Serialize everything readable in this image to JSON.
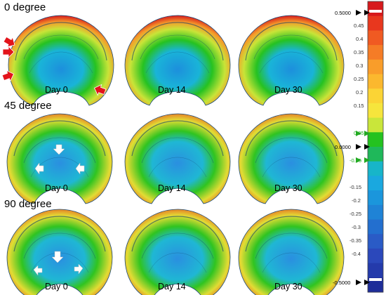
{
  "rows": [
    {
      "title": "0 degree",
      "panels": [
        "Day 0",
        "Day 14",
        "Day 30"
      ],
      "arrows": "outer"
    },
    {
      "title": "45 degree",
      "panels": [
        "Day 0",
        "Day 14",
        "Day 30"
      ],
      "arrows": "inner"
    },
    {
      "title": "90 degree",
      "panels": [
        "Day 0",
        "Day 14",
        "Day 30"
      ],
      "arrows": "inner"
    }
  ],
  "colorbar": {
    "top_label": "0.5000",
    "bottom_label": "-0.5000",
    "zero_label": "0.0000",
    "ticks_pos": [
      "0.45",
      "0.4",
      "0.35",
      "0.3",
      "0.25",
      "0.2",
      "0.15",
      "0.05"
    ],
    "ticks_neg": [
      "-0.05",
      "-0.15",
      "-0.2",
      "-0.25",
      "-0.3",
      "-0.35",
      "-0.4"
    ],
    "colors_top_to_bottom": [
      "#d7191c",
      "#e8371e",
      "#f05a22",
      "#f57c26",
      "#f99d2a",
      "#fbb82e",
      "#fbd435",
      "#f6e53c",
      "#c9e63a",
      "#24c21f",
      "#1fb85a",
      "#17b5c9",
      "#1aa8df",
      "#1b96dc",
      "#1f83d6",
      "#236fcf",
      "#2a5bc6",
      "#2b48bb",
      "#243aab",
      "#1e2d99"
    ]
  }
}
